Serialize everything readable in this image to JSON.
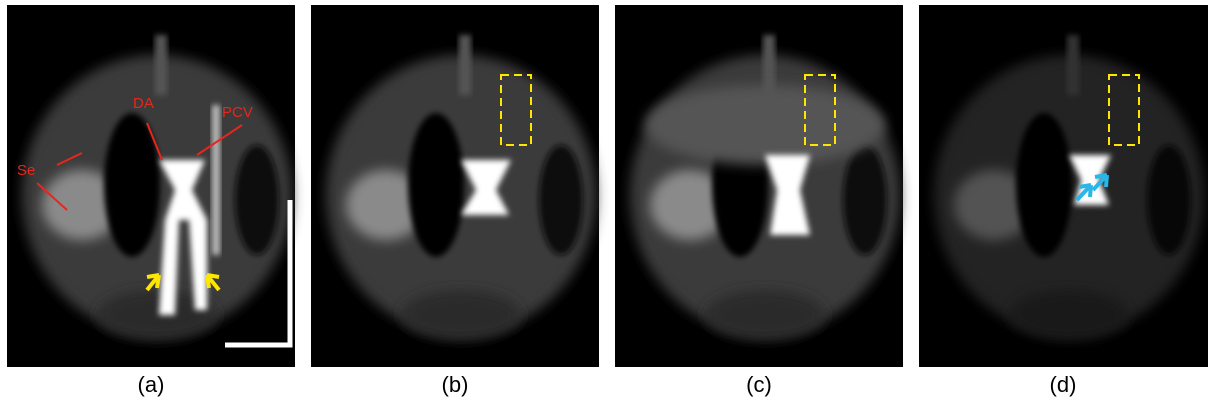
{
  "panels": [
    {
      "caption": "(a)",
      "labels": [
        "Se",
        "DA",
        "PCV"
      ]
    },
    {
      "caption": "(b)"
    },
    {
      "caption": "(c)"
    },
    {
      "caption": "(d)"
    }
  ]
}
